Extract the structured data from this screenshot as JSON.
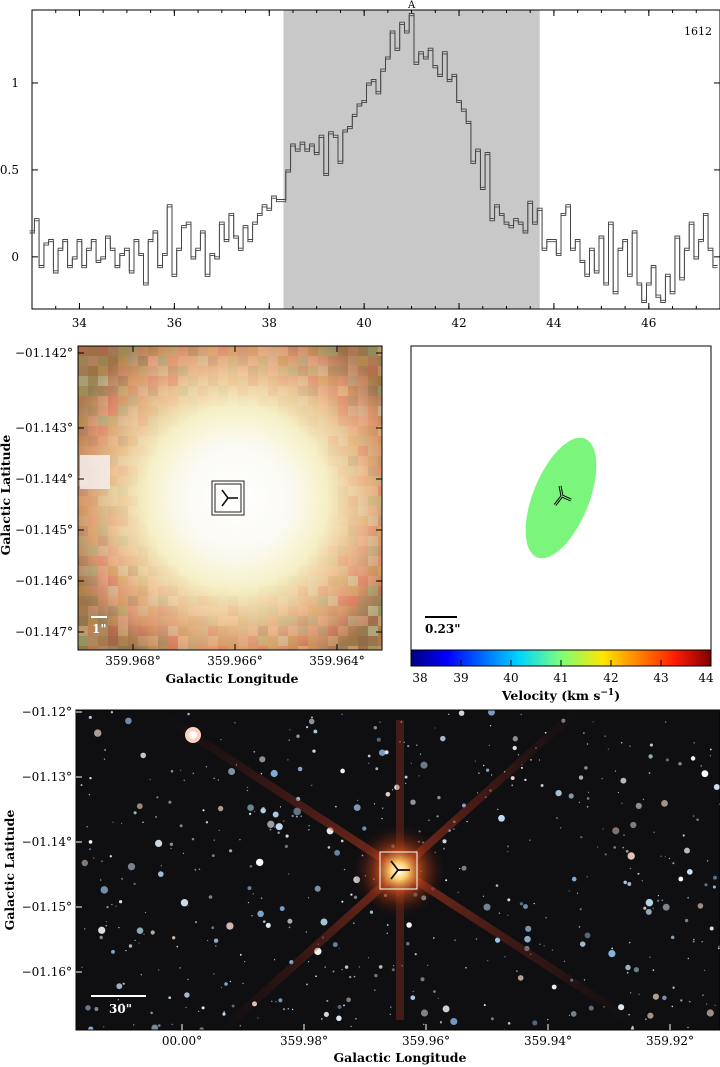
{
  "spectrum": {
    "label": "1612",
    "peak_marker": "A",
    "xlim": [
      33,
      47.5
    ],
    "ylim": [
      -0.3,
      1.42
    ],
    "x_ticks": [
      "34",
      "36",
      "38",
      "40",
      "42",
      "44",
      "46"
    ],
    "y_ticks": [
      "0",
      "0.5",
      "1"
    ],
    "shaded_range": [
      38.3,
      43.7
    ],
    "colors": {
      "shade": "#c8c8c8",
      "line": "#333333"
    }
  },
  "zoom_image": {
    "xlabel": "Galactic Longitude",
    "ylabel": "Galactic Latitude",
    "x_ticks": [
      "359.968°",
      "359.966°",
      "359.964°"
    ],
    "y_ticks": [
      "−01.142°",
      "−01.143°",
      "−01.144°",
      "−01.145°",
      "−01.146°",
      "−01.147°"
    ],
    "scale_bar": "1\""
  },
  "velocity_map": {
    "scale_bar": "0.23\"",
    "ellipse_color": "#7cf57c",
    "colorbar": {
      "label_main": "Velocity (km s",
      "label_sup": "−1",
      "label_end": ")",
      "ticks": [
        "38",
        "39",
        "40",
        "41",
        "42",
        "43",
        "44"
      ]
    }
  },
  "wide_image": {
    "xlabel": "Galactic Longitude",
    "ylabel": "Galactic Latitude",
    "x_ticks": [
      "00.00°",
      "359.98°",
      "359.96°",
      "359.94°",
      "359.92°"
    ],
    "y_ticks": [
      "−01.12°",
      "−01.13°",
      "−01.14°",
      "−01.15°",
      "−01.16°"
    ],
    "scale_bar": "30\""
  },
  "chart_data": {
    "type": "line",
    "x": [
      33.0,
      33.1,
      33.2,
      33.3,
      33.4,
      33.5,
      33.6,
      33.7,
      33.8,
      33.9,
      34.0,
      34.1,
      34.2,
      34.3,
      34.4,
      34.5,
      34.6,
      34.7,
      34.8,
      34.9,
      35.0,
      35.1,
      35.2,
      35.3,
      35.4,
      35.5,
      35.6,
      35.7,
      35.8,
      35.9,
      36.0,
      36.1,
      36.2,
      36.3,
      36.4,
      36.5,
      36.6,
      36.7,
      36.8,
      36.9,
      37.0,
      37.1,
      37.2,
      37.3,
      37.4,
      37.5,
      37.6,
      37.7,
      37.8,
      37.9,
      38.0,
      38.1,
      38.2,
      38.3,
      38.4,
      38.5,
      38.6,
      38.7,
      38.8,
      38.9,
      39.0,
      39.1,
      39.2,
      39.3,
      39.4,
      39.5,
      39.6,
      39.7,
      39.8,
      39.9,
      40.0,
      40.1,
      40.2,
      40.3,
      40.4,
      40.5,
      40.6,
      40.7,
      40.8,
      40.9,
      41.0,
      41.1,
      41.2,
      41.3,
      41.4,
      41.5,
      41.6,
      41.7,
      41.8,
      41.9,
      42.0,
      42.1,
      42.2,
      42.3,
      42.4,
      42.5,
      42.6,
      42.7,
      42.8,
      42.9,
      43.0,
      43.1,
      43.2,
      43.3,
      43.4,
      43.5,
      43.6,
      43.7,
      43.8,
      43.9,
      44.0,
      44.1,
      44.2,
      44.3,
      44.4,
      44.5,
      44.6,
      44.7,
      44.8,
      44.9,
      45.0,
      45.1,
      45.2,
      45.3,
      45.4,
      45.5,
      45.6,
      45.7,
      45.8,
      45.9,
      46.0,
      46.1,
      46.2,
      46.3,
      46.4,
      46.5,
      46.6,
      46.7,
      46.8,
      46.9,
      47.0,
      47.1,
      47.2,
      47.3,
      47.4
    ],
    "y": [
      0.15,
      0.22,
      -0.05,
      0.08,
      0.1,
      -0.08,
      0.05,
      0.1,
      -0.05,
      0.0,
      0.1,
      -0.05,
      0.05,
      0.1,
      -0.02,
      0.0,
      0.12,
      0.05,
      -0.05,
      0.02,
      0.05,
      -0.08,
      0.1,
      0.02,
      -0.15,
      0.1,
      0.15,
      -0.05,
      0.02,
      0.3,
      -0.1,
      0.05,
      0.18,
      0.2,
      0.0,
      0.05,
      0.15,
      -0.1,
      0.02,
      0.0,
      0.2,
      0.1,
      0.25,
      0.12,
      0.05,
      0.18,
      0.1,
      0.2,
      0.25,
      0.3,
      0.28,
      0.35,
      0.33,
      0.33,
      0.5,
      0.65,
      0.62,
      0.66,
      0.62,
      0.65,
      0.6,
      0.7,
      0.48,
      0.72,
      0.7,
      0.55,
      0.73,
      0.75,
      0.82,
      0.88,
      0.9,
      1.0,
      1.02,
      0.95,
      1.08,
      1.15,
      1.3,
      1.2,
      1.35,
      1.3,
      1.4,
      1.12,
      1.18,
      1.15,
      1.2,
      1.1,
      1.05,
      1.18,
      1.02,
      1.05,
      0.9,
      0.85,
      0.78,
      0.55,
      0.62,
      0.4,
      0.6,
      0.22,
      0.3,
      0.25,
      0.2,
      0.18,
      0.22,
      0.2,
      0.15,
      0.32,
      0.2,
      0.28,
      0.05,
      0.1,
      0.1,
      0.02,
      0.25,
      0.3,
      0.05,
      0.1,
      -0.02,
      -0.1,
      0.05,
      -0.08,
      0.12,
      -0.15,
      0.2,
      -0.2,
      0.05,
      0.1,
      -0.1,
      0.15,
      -0.15,
      -0.25,
      -0.15,
      -0.05,
      -0.22,
      -0.25,
      -0.1,
      -0.2,
      0.12,
      -0.12,
      0.05,
      0.2,
      0.0,
      0.1,
      0.25,
      0.05,
      -0.05
    ],
    "xlim": [
      33,
      47.5
    ],
    "ylim": [
      -0.3,
      1.42
    ]
  }
}
